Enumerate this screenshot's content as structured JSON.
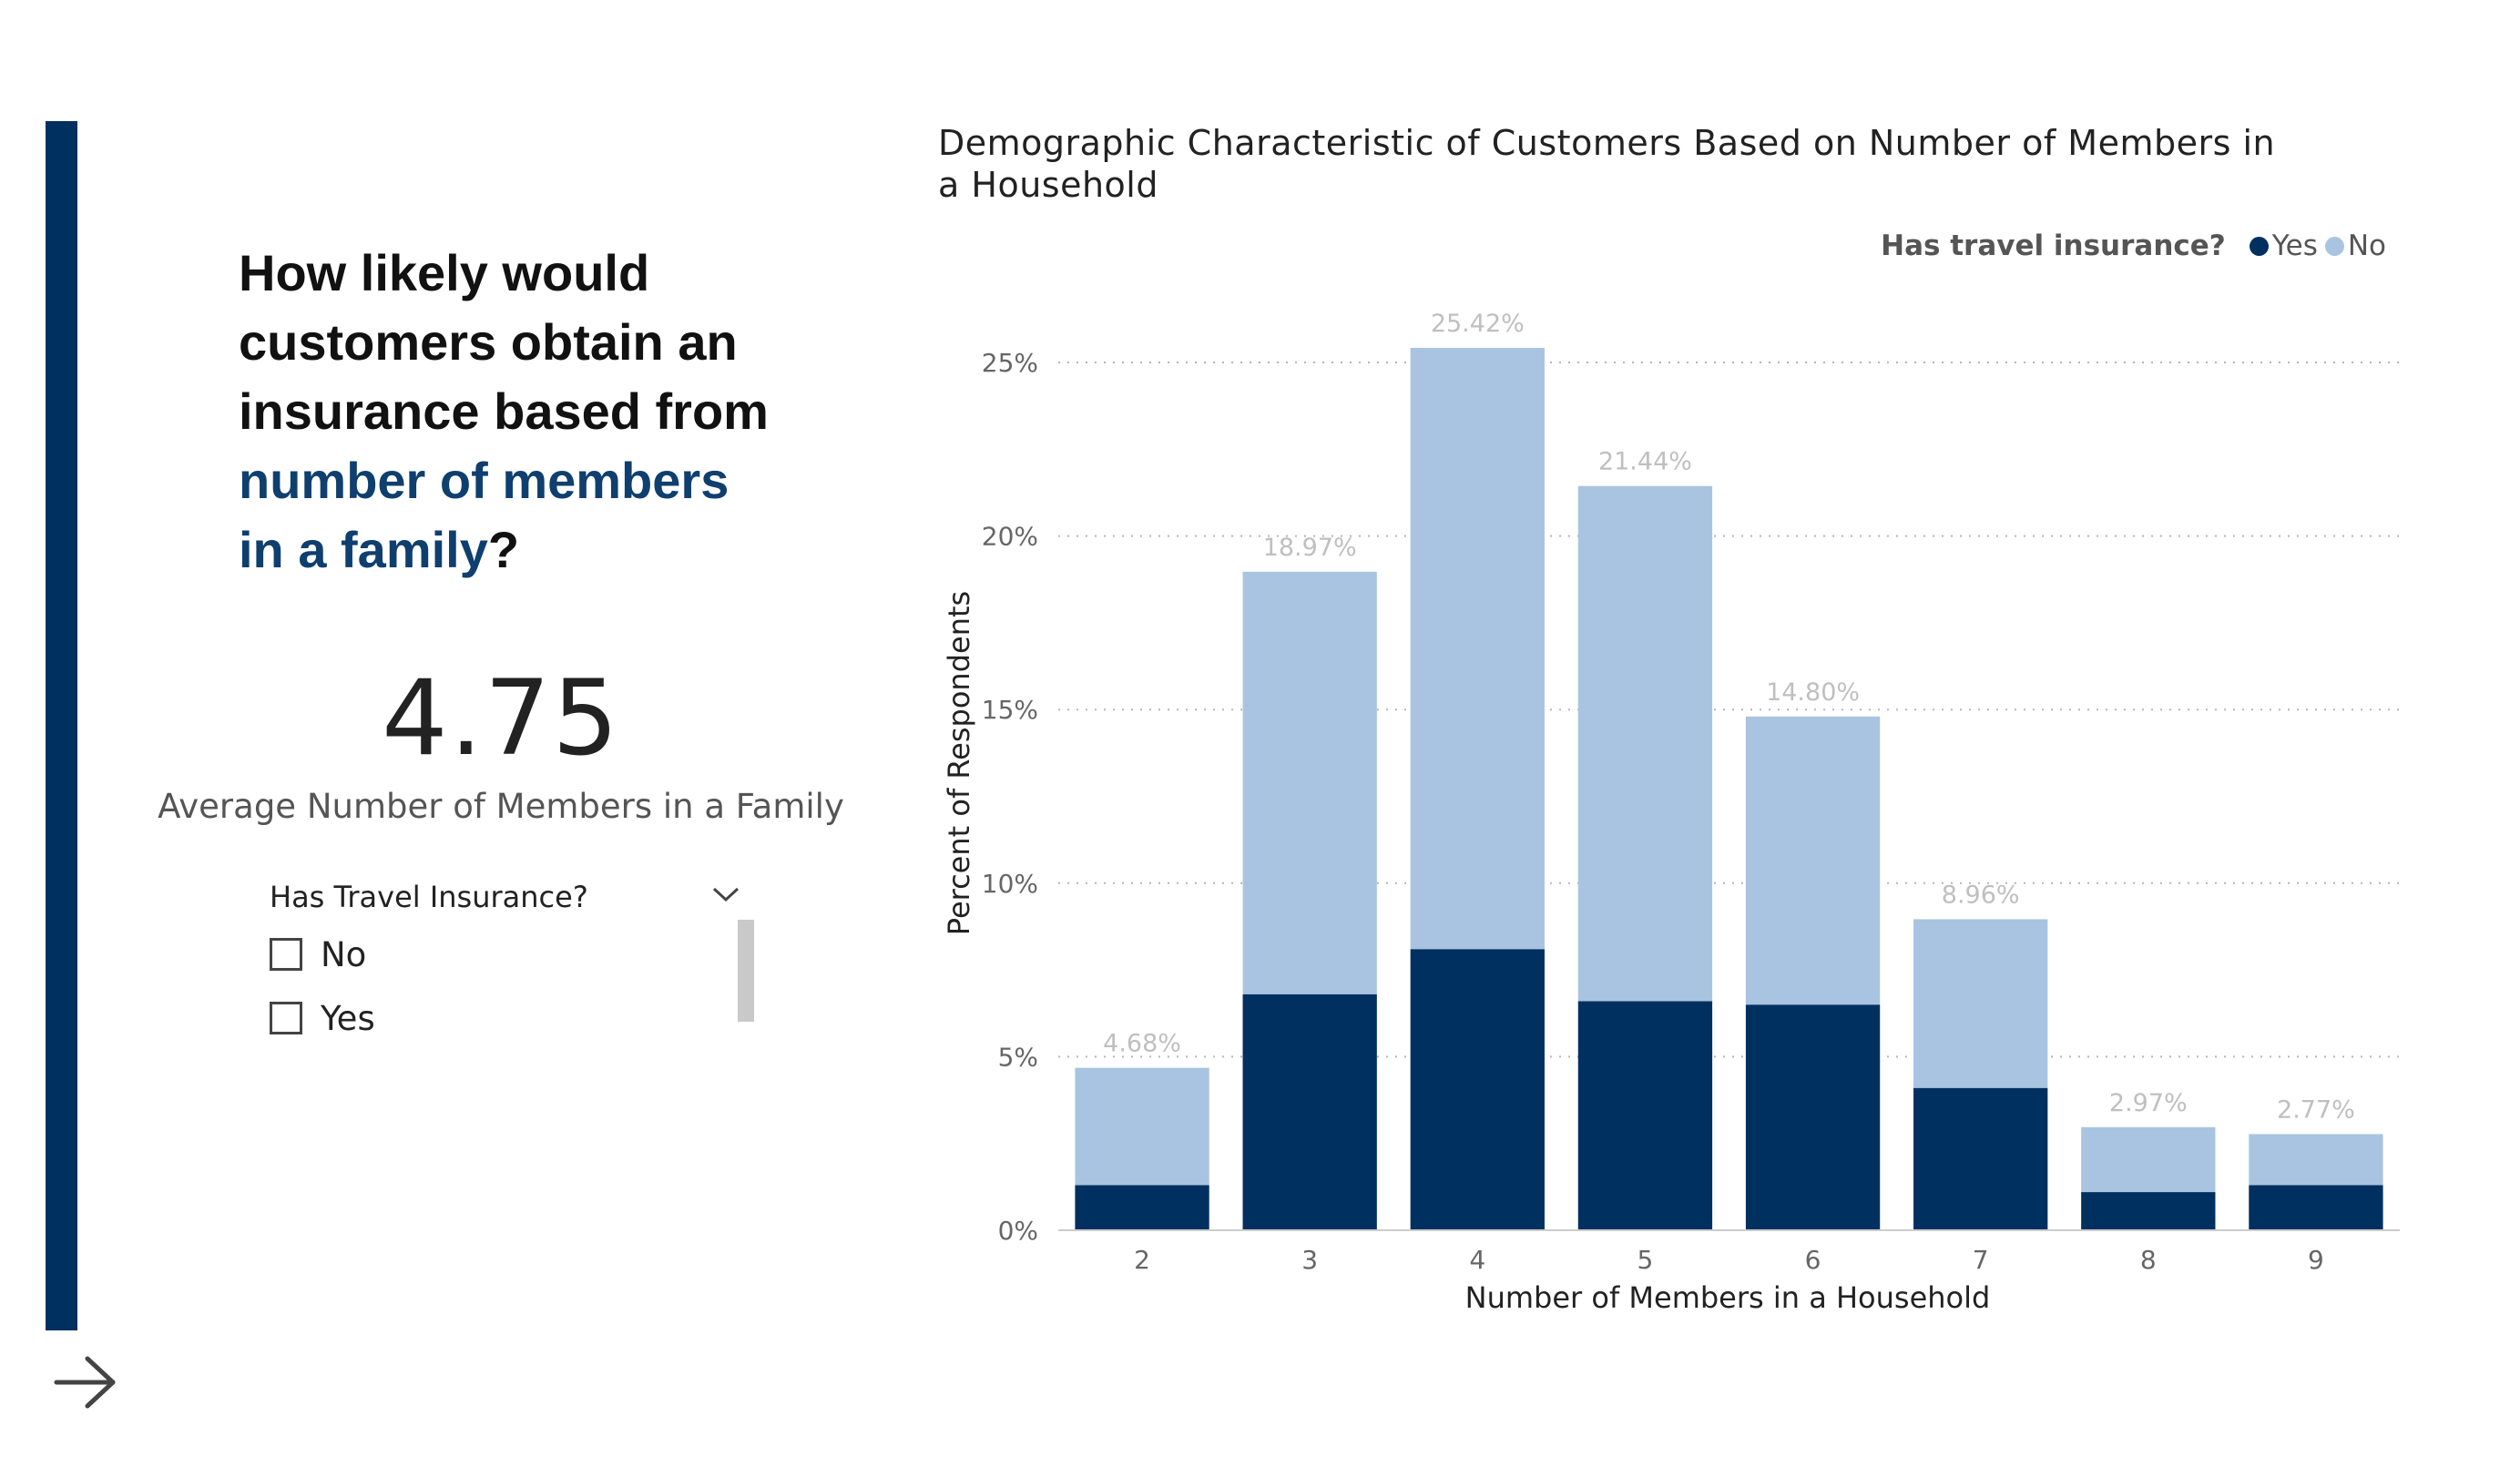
{
  "question": {
    "line1": "How likely would",
    "line2": "customers obtain an",
    "line3": "insurance based from",
    "highlight1": "number of members",
    "highlight2": "in a family",
    "end": "?"
  },
  "kpi": {
    "value": "4.75",
    "label": "Average Number of Members in a Family"
  },
  "slicer": {
    "title": "Has Travel Insurance?",
    "options": [
      "No",
      "Yes"
    ]
  },
  "legend": {
    "title": "Has travel insurance?",
    "items": [
      {
        "label": "Yes",
        "color": "#00305f"
      },
      {
        "label": "No",
        "color": "#a9c4e0"
      }
    ]
  },
  "colors": {
    "accent": "#00305f",
    "yes": "#00305f",
    "no": "#a9c4e0",
    "highlight_text": "#0f3f6e"
  },
  "chart_data": {
    "type": "bar",
    "stacked": true,
    "title": "Demographic Characteristic of Customers Based on Number of Members in a Household",
    "xlabel": "Number of Members in a Household",
    "ylabel": "Percent of Respondents",
    "categories": [
      "2",
      "3",
      "4",
      "5",
      "6",
      "7",
      "8",
      "9"
    ],
    "series": [
      {
        "name": "Yes",
        "values": [
          1.3,
          6.8,
          8.1,
          6.6,
          6.5,
          4.1,
          1.1,
          1.3
        ]
      },
      {
        "name": "No",
        "values": [
          3.38,
          12.17,
          17.32,
          14.84,
          8.3,
          4.86,
          1.87,
          1.47
        ]
      }
    ],
    "totals": [
      "4.68%",
      "18.97%",
      "25.42%",
      "21.44%",
      "14.80%",
      "8.96%",
      "2.97%",
      "2.77%"
    ],
    "ylim": [
      0,
      25
    ],
    "yticks": [
      "0%",
      "5%",
      "10%",
      "15%",
      "20%",
      "25%"
    ],
    "grid": true,
    "legend_position": "top-right"
  }
}
